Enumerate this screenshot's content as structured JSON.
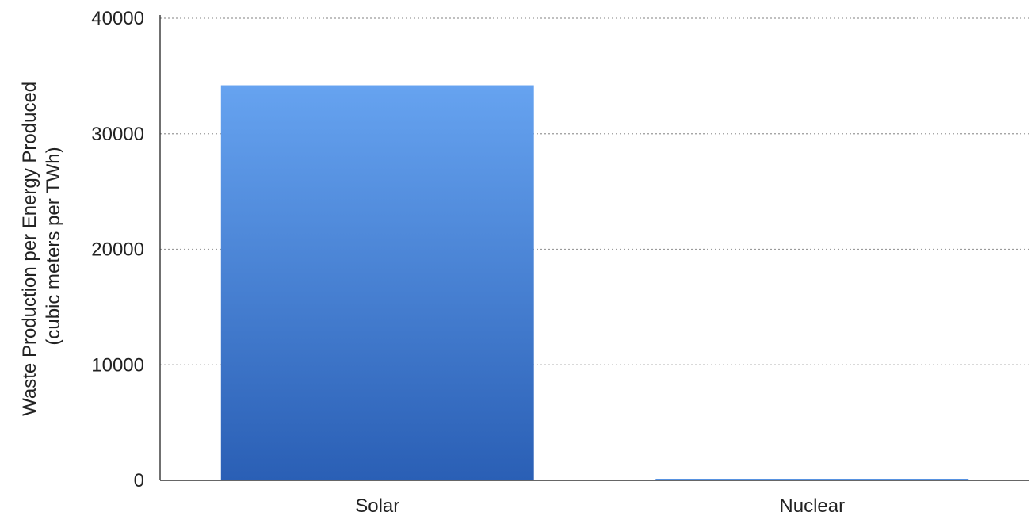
{
  "chart_data": {
    "type": "bar",
    "title": "",
    "xlabel": "",
    "ylabel_lines": [
      "Waste Production per Energy Produced",
      "(cubic meters per TWh)"
    ],
    "categories": [
      "Solar",
      "Nuclear"
    ],
    "values": [
      34200,
      100
    ],
    "ylim": [
      0,
      40000
    ],
    "yticks": [
      0,
      10000,
      20000,
      30000,
      40000
    ],
    "ytick_labels": [
      "0",
      "10000",
      "20000",
      "30000",
      "40000"
    ],
    "grid": true,
    "legend": "none"
  },
  "colors": {
    "bar_top": "#66a3f0",
    "bar_bottom": "#2a5fb5",
    "gridline": "#9a9a9a",
    "axis": "#333333",
    "text": "#222222"
  }
}
